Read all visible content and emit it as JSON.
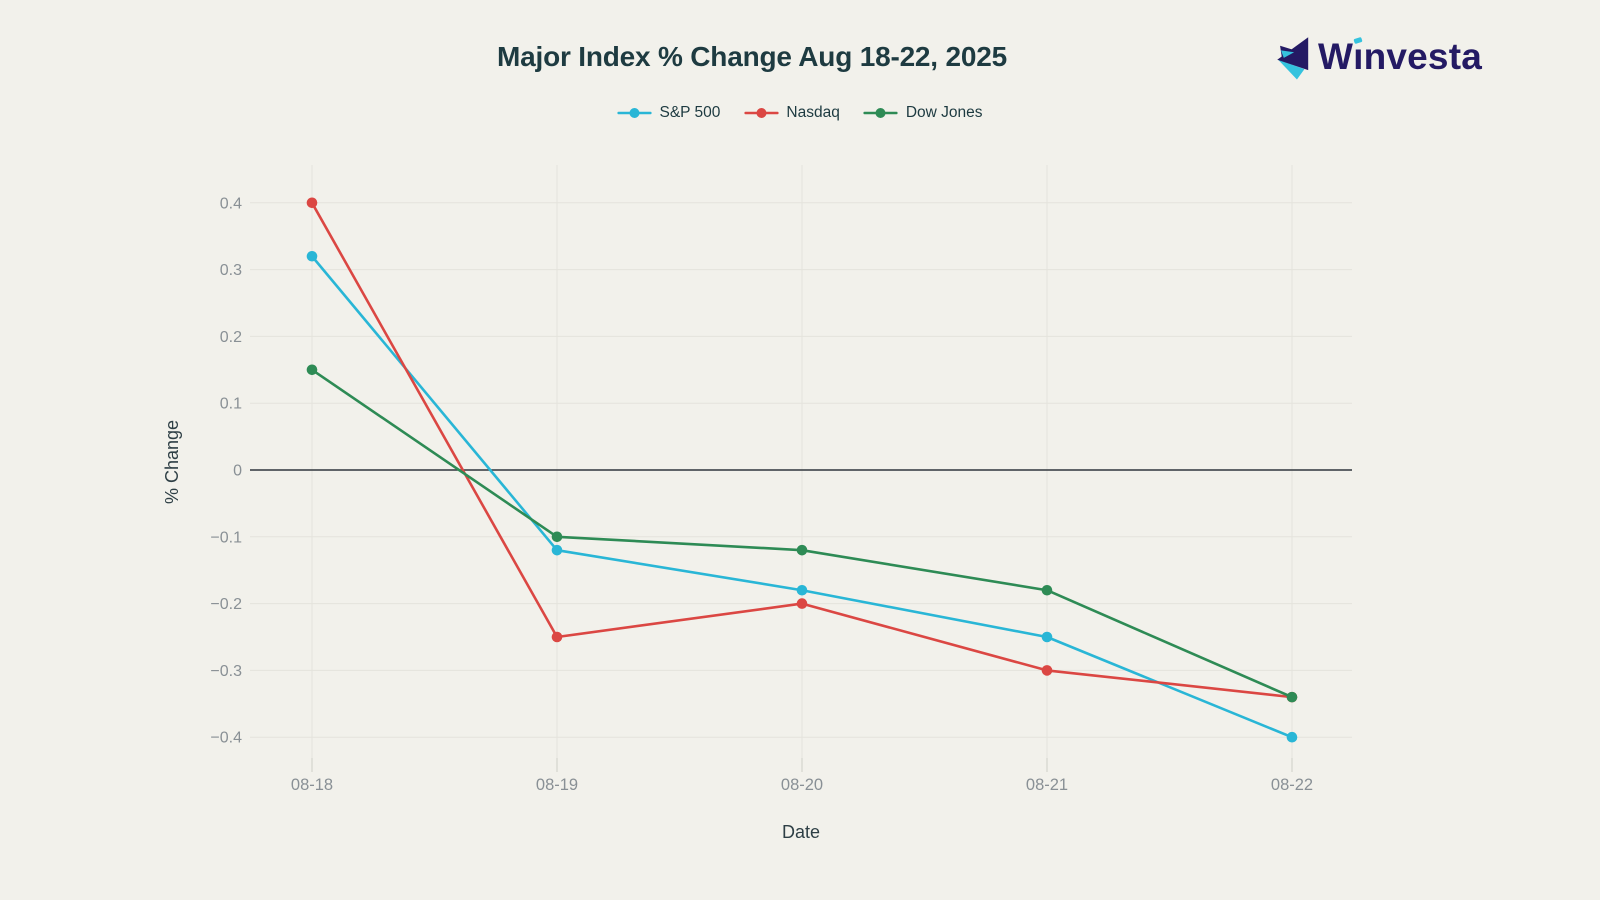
{
  "page": {
    "background": "#f2f1eb"
  },
  "header": {
    "logo": {
      "name": "Winvesta",
      "text_color": "#241a64",
      "accent_color": "#35c3de"
    }
  },
  "chart_data": {
    "type": "line",
    "title": "Major Index % Change Aug 18-22, 2025",
    "xlabel": "Date",
    "ylabel": "% Change",
    "categories": [
      "08-18",
      "08-19",
      "08-20",
      "08-21",
      "08-22"
    ],
    "series": [
      {
        "name": "S&P 500",
        "color": "#29b6d6",
        "values": [
          0.32,
          -0.12,
          -0.18,
          -0.25,
          -0.4
        ]
      },
      {
        "name": "Nasdaq",
        "color": "#db4743",
        "values": [
          0.4,
          -0.25,
          -0.2,
          -0.3,
          -0.34
        ]
      },
      {
        "name": "Dow Jones",
        "color": "#2e8b55",
        "values": [
          0.15,
          -0.1,
          -0.12,
          -0.18,
          -0.34
        ]
      }
    ],
    "yticks": [
      0.4,
      0.3,
      0.2,
      0.1,
      0,
      -0.1,
      -0.2,
      -0.3,
      -0.4
    ],
    "ytick_labels": [
      "0.4",
      "0.3",
      "0.2",
      "0.1",
      "0",
      "−0.1",
      "−0.2",
      "−0.3",
      "−0.4"
    ],
    "ylim": [
      -0.45,
      0.45
    ],
    "grid": true,
    "zero_line": true,
    "legend_position": "top-center",
    "colors": {
      "title": "#1e3b41",
      "tick_label": "#899095",
      "axis_title": "#2e3f45",
      "grid": "#e4e3dc",
      "tick_mark": "#cfcfc7",
      "zero_line": "#30363c"
    }
  }
}
